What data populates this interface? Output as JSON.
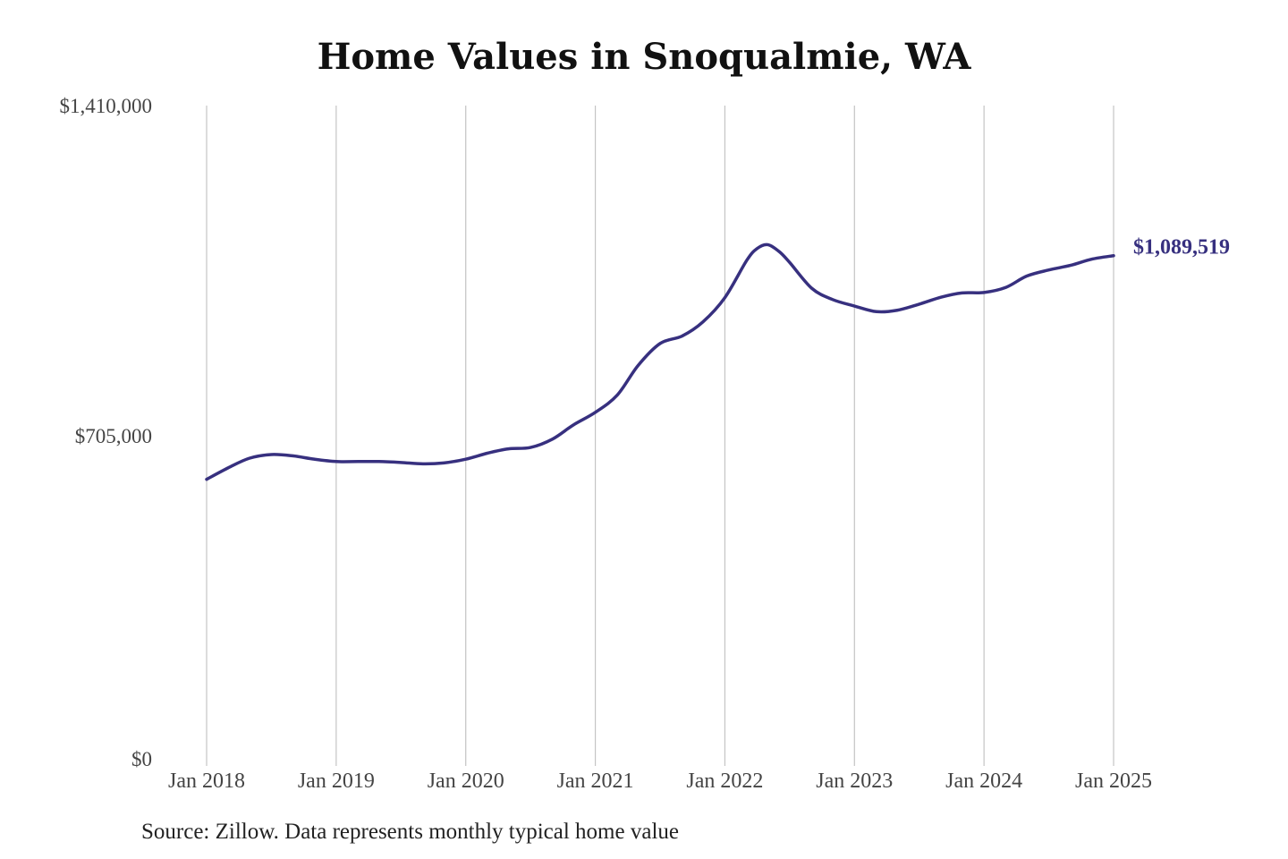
{
  "chart_data": {
    "type": "line",
    "title": "Home Values in Snoqualmie, WA",
    "xlabel": "",
    "ylabel": "",
    "ylim": [
      0,
      1410000
    ],
    "y_ticks": [
      {
        "value": 0,
        "label": "$0"
      },
      {
        "value": 705000,
        "label": "$705,000"
      },
      {
        "value": 1410000,
        "label": "$1,410,000"
      }
    ],
    "x_ticks": [
      {
        "value": 2018,
        "label": "Jan 2018"
      },
      {
        "value": 2019,
        "label": "Jan 2019"
      },
      {
        "value": 2020,
        "label": "Jan 2020"
      },
      {
        "value": 2021,
        "label": "Jan 2021"
      },
      {
        "value": 2022,
        "label": "Jan 2022"
      },
      {
        "value": 2023,
        "label": "Jan 2023"
      },
      {
        "value": 2024,
        "label": "Jan 2024"
      },
      {
        "value": 2025,
        "label": "Jan 2025"
      }
    ],
    "grid": "vertical",
    "series": [
      {
        "color": "#37307f",
        "points": [
          [
            2018.0,
            612000
          ],
          [
            2018.17,
            637000
          ],
          [
            2018.33,
            657000
          ],
          [
            2018.5,
            665000
          ],
          [
            2018.67,
            662000
          ],
          [
            2018.83,
            655000
          ],
          [
            2019.0,
            650000
          ],
          [
            2019.17,
            650000
          ],
          [
            2019.33,
            650000
          ],
          [
            2019.5,
            648000
          ],
          [
            2019.67,
            645000
          ],
          [
            2019.83,
            647000
          ],
          [
            2020.0,
            655000
          ],
          [
            2020.17,
            668000
          ],
          [
            2020.33,
            677000
          ],
          [
            2020.5,
            680000
          ],
          [
            2020.67,
            698000
          ],
          [
            2020.83,
            728000
          ],
          [
            2021.0,
            755000
          ],
          [
            2021.17,
            792000
          ],
          [
            2021.33,
            855000
          ],
          [
            2021.5,
            902000
          ],
          [
            2021.67,
            918000
          ],
          [
            2021.83,
            948000
          ],
          [
            2022.0,
            1000000
          ],
          [
            2022.17,
            1080000
          ],
          [
            2022.25,
            1105000
          ],
          [
            2022.33,
            1113000
          ],
          [
            2022.42,
            1098000
          ],
          [
            2022.5,
            1075000
          ],
          [
            2022.67,
            1020000
          ],
          [
            2022.83,
            996000
          ],
          [
            2023.0,
            982000
          ],
          [
            2023.17,
            970000
          ],
          [
            2023.33,
            973000
          ],
          [
            2023.5,
            986000
          ],
          [
            2023.67,
            1001000
          ],
          [
            2023.83,
            1010000
          ],
          [
            2024.0,
            1011000
          ],
          [
            2024.17,
            1022000
          ],
          [
            2024.33,
            1046000
          ],
          [
            2024.5,
            1059000
          ],
          [
            2024.67,
            1069000
          ],
          [
            2024.83,
            1082000
          ],
          [
            2025.0,
            1089519
          ]
        ]
      }
    ],
    "annotations": [
      {
        "x": 2025.0,
        "y": 1089519,
        "text": "$1,089,519",
        "color": "#37307f"
      }
    ]
  },
  "footer": {
    "source": "Source: Zillow. Data represents monthly typical home value"
  }
}
